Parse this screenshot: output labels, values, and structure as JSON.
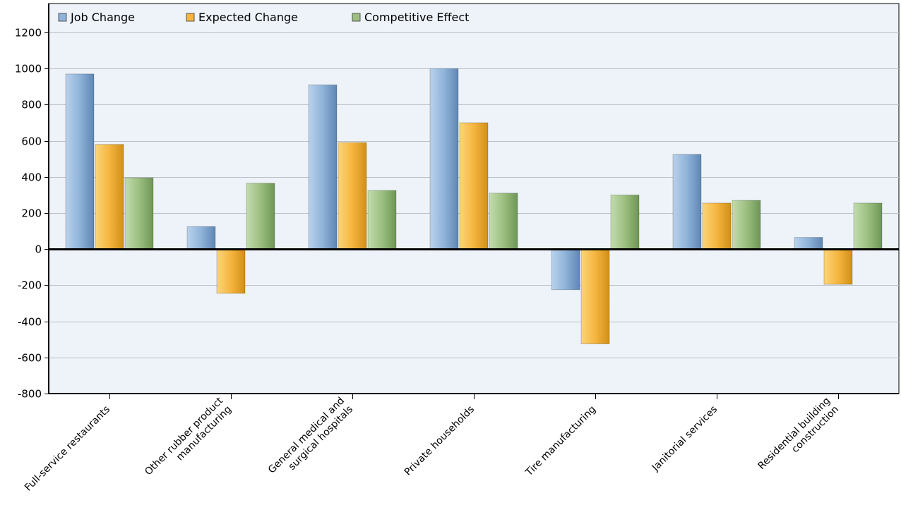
{
  "chart_data": {
    "type": "bar",
    "categories": [
      [
        "Full-service restaurants"
      ],
      [
        "Other rubber product",
        "manufacturing"
      ],
      [
        "General medical and",
        "surgical hospitals"
      ],
      [
        "Private households"
      ],
      [
        "Tire manufacturing"
      ],
      [
        "Janitorial services"
      ],
      [
        "Residential building",
        "construction"
      ]
    ],
    "series": [
      {
        "name": "Job Change",
        "color": "#8fb3d9",
        "values": [
          970,
          125,
          910,
          1000,
          -225,
          525,
          65
        ]
      },
      {
        "name": "Expected Change",
        "color": "#f5b53f",
        "values": [
          580,
          -245,
          590,
          700,
          -525,
          255,
          -195
        ]
      },
      {
        "name": "Competitive Effect",
        "color": "#9cbf80",
        "values": [
          395,
          365,
          325,
          310,
          300,
          270,
          255
        ]
      }
    ],
    "ylim": [
      -800,
      1200
    ],
    "yticks": [
      1200,
      1000,
      800,
      600,
      400,
      200,
      0,
      -200,
      -400,
      -600,
      -800
    ],
    "title": "",
    "xlabel": "",
    "ylabel": "",
    "grid": true,
    "legend_position": "top-left"
  }
}
